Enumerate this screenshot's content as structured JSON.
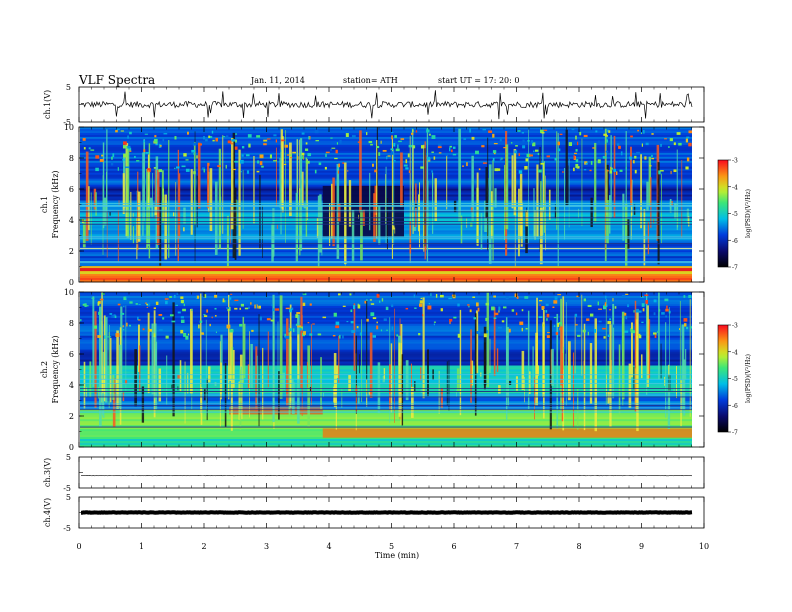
{
  "header": {
    "title": "VLF  Spectra",
    "date": "Jan. 11, 2014",
    "station": "station= ATH",
    "start": "start  UT =   17: 20: 0"
  },
  "chart_data": [
    {
      "id": "ch1-waveform",
      "type": "line",
      "ylabel": "ch.1(V)",
      "ylim": [
        -5,
        5
      ],
      "y_ticks": [
        "5",
        "-5"
      ],
      "xlim": [
        0,
        10
      ],
      "approx_baseline": 0,
      "approx_amplitude": 1.5
    },
    {
      "id": "ch1-spectrogram",
      "type": "heatmap",
      "ylabel": "ch.1\nFrequency (kHz)",
      "ylim": [
        0,
        10
      ],
      "y_ticks": [
        "0",
        "2",
        "4",
        "6",
        "8",
        "10"
      ],
      "xlim": [
        0,
        10
      ],
      "colorbar": {
        "label": "log(PSD)(V²/Hz)",
        "range": [
          -7,
          -3
        ],
        "ticks": [
          "-3",
          "-4",
          "-5",
          "-6",
          "-7"
        ]
      }
    },
    {
      "id": "ch2-spectrogram",
      "type": "heatmap",
      "ylabel": "ch.2\nFrequency (kHz)",
      "ylim": [
        0,
        10
      ],
      "y_ticks": [
        "0",
        "2",
        "4",
        "6",
        "8",
        "10"
      ],
      "xlim": [
        0,
        10
      ],
      "colorbar": {
        "label": "log(PSD)(V²/Hz)",
        "range": [
          -7,
          -3
        ],
        "ticks": [
          "-3",
          "-4",
          "-5",
          "-6",
          "-7"
        ]
      }
    },
    {
      "id": "ch3-waveform",
      "type": "line",
      "ylabel": "ch.3(V)",
      "ylim": [
        -5,
        5
      ],
      "y_ticks": [
        "5",
        "-5"
      ],
      "approx_baseline": -1
    },
    {
      "id": "ch4-waveform",
      "type": "line",
      "ylabel": "ch.4(V)",
      "ylim": [
        -5,
        5
      ],
      "y_ticks": [
        "5",
        "-5"
      ],
      "approx_baseline": 0
    }
  ],
  "xaxis": {
    "label": "Time  (min)",
    "ticks": [
      "0",
      "1",
      "2",
      "3",
      "4",
      "5",
      "6",
      "7",
      "8",
      "9",
      "10"
    ]
  }
}
